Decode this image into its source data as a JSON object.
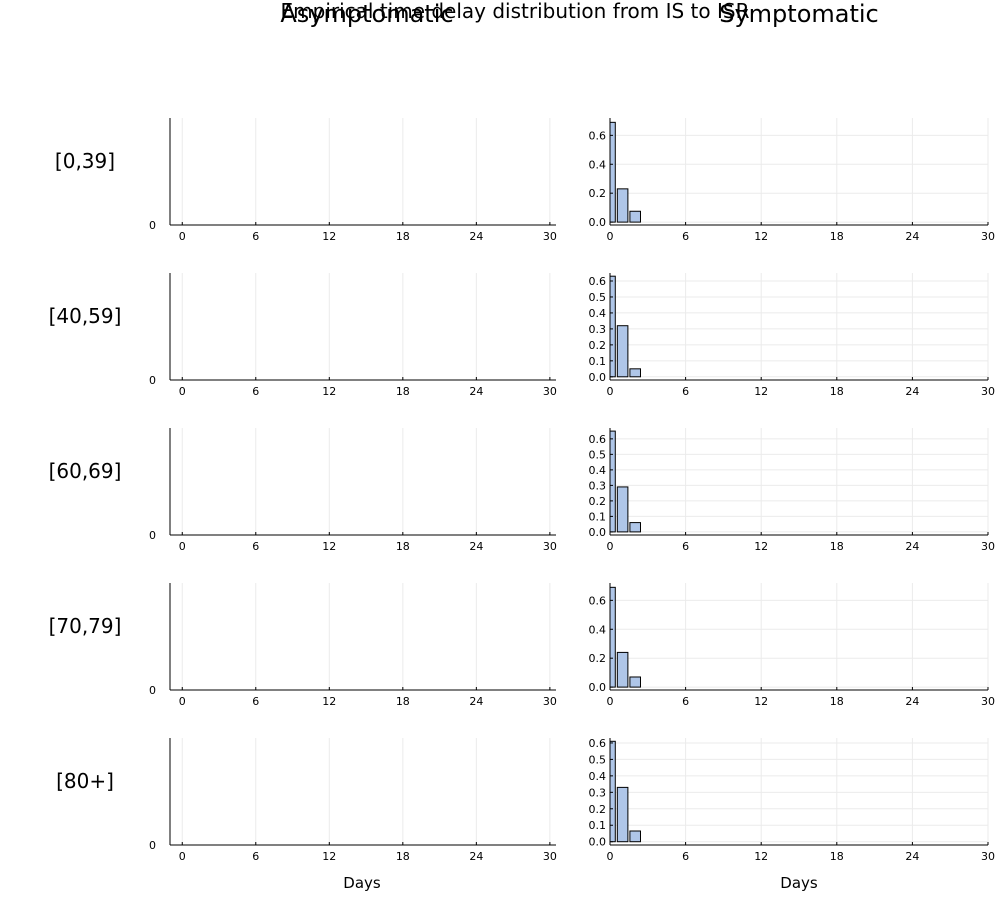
{
  "figure": {
    "title": "Empirical time delay distribution from IS to ISR",
    "column_titles": [
      "Asymptomatic",
      "Symptomatic"
    ],
    "xlabel": "Days"
  },
  "colors": {
    "bar_fill": "#afc6e8",
    "bar_stroke": "#000000",
    "axis": "#000000",
    "grid": "#ebebeb"
  },
  "chart_data": [
    {
      "type": "bar",
      "panel": "Asymptomatic",
      "group": "[0,39]",
      "x": [],
      "values": [],
      "xlabel": "",
      "xlim": [
        -1,
        30.5
      ],
      "xticks": [
        0,
        6,
        12,
        18,
        24,
        30
      ],
      "yticks": [
        0
      ],
      "grid": true
    },
    {
      "type": "bar",
      "panel": "Symptomatic",
      "group": "[0,39]",
      "x": [
        0,
        1,
        2
      ],
      "values": [
        0.69,
        0.23,
        0.075
      ],
      "xlabel": "",
      "xlim": [
        0,
        30
      ],
      "ylim": [
        -0.02,
        0.72
      ],
      "xticks": [
        0,
        6,
        12,
        18,
        24,
        30
      ],
      "yticks": [
        0.0,
        0.2,
        0.4,
        0.6
      ],
      "grid": true
    },
    {
      "type": "bar",
      "panel": "Asymptomatic",
      "group": "[40,59]",
      "x": [],
      "values": [],
      "xlabel": "",
      "xlim": [
        -1,
        30.5
      ],
      "xticks": [
        0,
        6,
        12,
        18,
        24,
        30
      ],
      "yticks": [
        0
      ],
      "grid": true
    },
    {
      "type": "bar",
      "panel": "Symptomatic",
      "group": "[40,59]",
      "x": [
        0,
        1,
        2
      ],
      "values": [
        0.63,
        0.32,
        0.05
      ],
      "xlabel": "",
      "xlim": [
        0,
        30
      ],
      "ylim": [
        -0.02,
        0.65
      ],
      "xticks": [
        0,
        6,
        12,
        18,
        24,
        30
      ],
      "yticks": [
        0.0,
        0.1,
        0.2,
        0.3,
        0.4,
        0.5,
        0.6
      ],
      "grid": true
    },
    {
      "type": "bar",
      "panel": "Asymptomatic",
      "group": "[60,69]",
      "x": [],
      "values": [],
      "xlabel": "",
      "xlim": [
        -1,
        30.5
      ],
      "xticks": [
        0,
        6,
        12,
        18,
        24,
        30
      ],
      "yticks": [
        0
      ],
      "grid": true
    },
    {
      "type": "bar",
      "panel": "Symptomatic",
      "group": "[60,69]",
      "x": [
        0,
        1,
        2
      ],
      "values": [
        0.65,
        0.29,
        0.06
      ],
      "xlabel": "",
      "xlim": [
        0,
        30
      ],
      "ylim": [
        -0.02,
        0.67
      ],
      "xticks": [
        0,
        6,
        12,
        18,
        24,
        30
      ],
      "yticks": [
        0.0,
        0.1,
        0.2,
        0.3,
        0.4,
        0.5,
        0.6
      ],
      "grid": true
    },
    {
      "type": "bar",
      "panel": "Asymptomatic",
      "group": "[70,79]",
      "x": [],
      "values": [],
      "xlabel": "",
      "xlim": [
        -1,
        30.5
      ],
      "xticks": [
        0,
        6,
        12,
        18,
        24,
        30
      ],
      "yticks": [
        0
      ],
      "grid": true
    },
    {
      "type": "bar",
      "panel": "Symptomatic",
      "group": "[70,79]",
      "x": [
        0,
        1,
        2
      ],
      "values": [
        0.69,
        0.24,
        0.07
      ],
      "xlabel": "",
      "xlim": [
        0,
        30
      ],
      "ylim": [
        -0.02,
        0.72
      ],
      "xticks": [
        0,
        6,
        12,
        18,
        24,
        30
      ],
      "yticks": [
        0.0,
        0.2,
        0.4,
        0.6
      ],
      "grid": true
    },
    {
      "type": "bar",
      "panel": "Asymptomatic",
      "group": "[80+]",
      "x": [],
      "values": [],
      "xlabel": "Days",
      "xlim": [
        -1,
        30.5
      ],
      "xticks": [
        0,
        6,
        12,
        18,
        24,
        30
      ],
      "yticks": [
        0
      ],
      "grid": true
    },
    {
      "type": "bar",
      "panel": "Symptomatic",
      "group": "[80+]",
      "x": [
        0,
        1,
        2
      ],
      "values": [
        0.61,
        0.33,
        0.065
      ],
      "xlabel": "Days",
      "xlim": [
        0,
        30
      ],
      "ylim": [
        -0.02,
        0.63
      ],
      "xticks": [
        0,
        6,
        12,
        18,
        24,
        30
      ],
      "yticks": [
        0.0,
        0.1,
        0.2,
        0.3,
        0.4,
        0.5,
        0.6
      ],
      "grid": true
    }
  ]
}
